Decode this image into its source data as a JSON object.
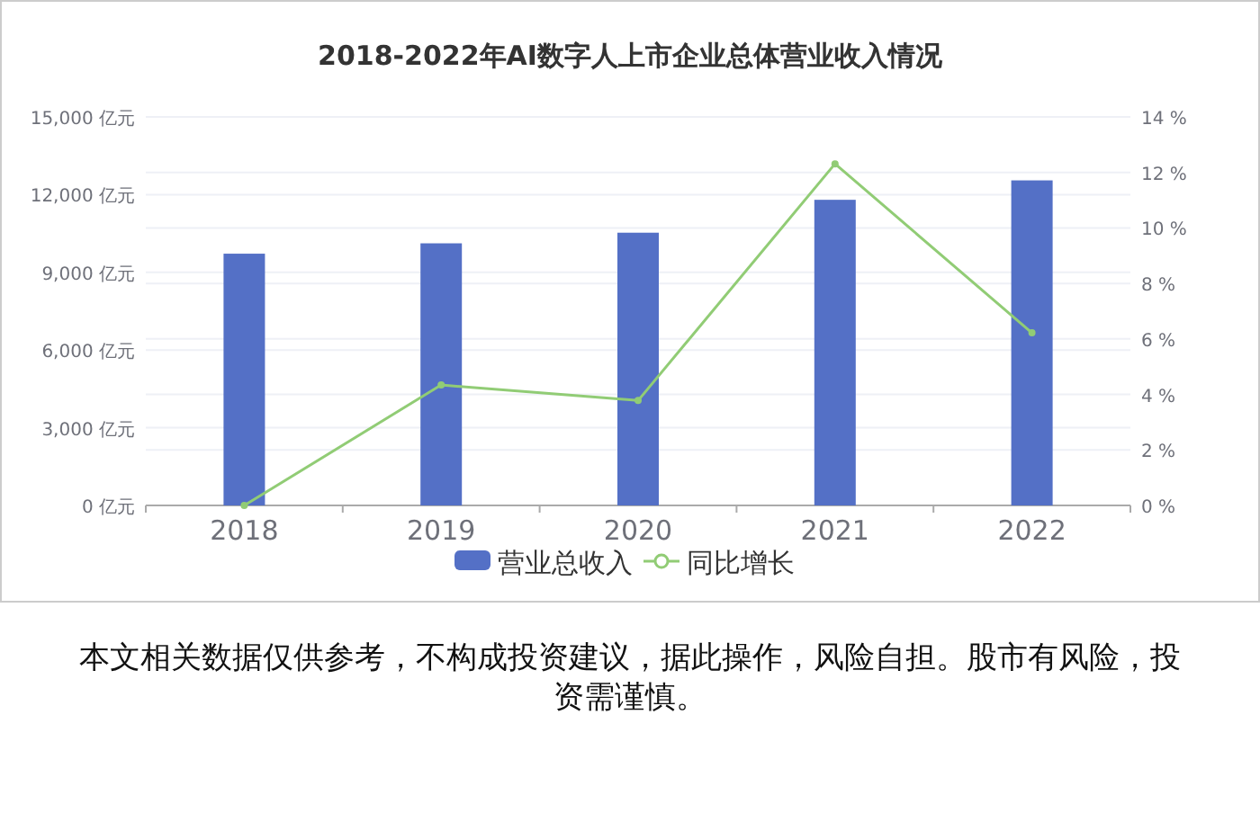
{
  "chart_data": {
    "type": "bar",
    "title": "2018-2022年AI数字人上市企业总体营业收入情况",
    "categories": [
      "2018",
      "2019",
      "2020",
      "2021",
      "2022"
    ],
    "series": [
      {
        "name": "营业总收入",
        "color": "#5470c6",
        "values": [
          9720,
          10120,
          10530,
          11800,
          12550
        ]
      },
      {
        "name": "同比增长",
        "type": "line",
        "axis": "y2",
        "color": "#91cc75",
        "values": [
          0,
          4.34,
          3.78,
          12.31,
          6.22
        ]
      }
    ],
    "ylim": [
      0,
      15000
    ],
    "yticks": [
      {
        "value": 0,
        "label": "0 亿元"
      },
      {
        "value": 3000,
        "label": "3,000 亿元"
      },
      {
        "value": 6000,
        "label": "6,000 亿元"
      },
      {
        "value": 9000,
        "label": "9,000 亿元"
      },
      {
        "value": 12000,
        "label": "12,000 亿元"
      },
      {
        "value": 15000,
        "label": "15,000 亿元"
      }
    ],
    "y2lim": [
      0,
      14
    ],
    "y2ticks": [
      {
        "value": 0,
        "label": "0 %"
      },
      {
        "value": 2,
        "label": "2 %"
      },
      {
        "value": 4,
        "label": "4 %"
      },
      {
        "value": 6,
        "label": "6 %"
      },
      {
        "value": 8,
        "label": "8 %"
      },
      {
        "value": 10,
        "label": "10 %"
      },
      {
        "value": 12,
        "label": "12 %"
      },
      {
        "value": 14,
        "label": "14 %"
      }
    ],
    "grid": true,
    "legend": "bottom",
    "marker": "circle",
    "annotations": [
      "本文相关数据仅供参考，不构成投资建议，据此操作，风险自担。股市有风险，投资需谨慎。"
    ]
  }
}
